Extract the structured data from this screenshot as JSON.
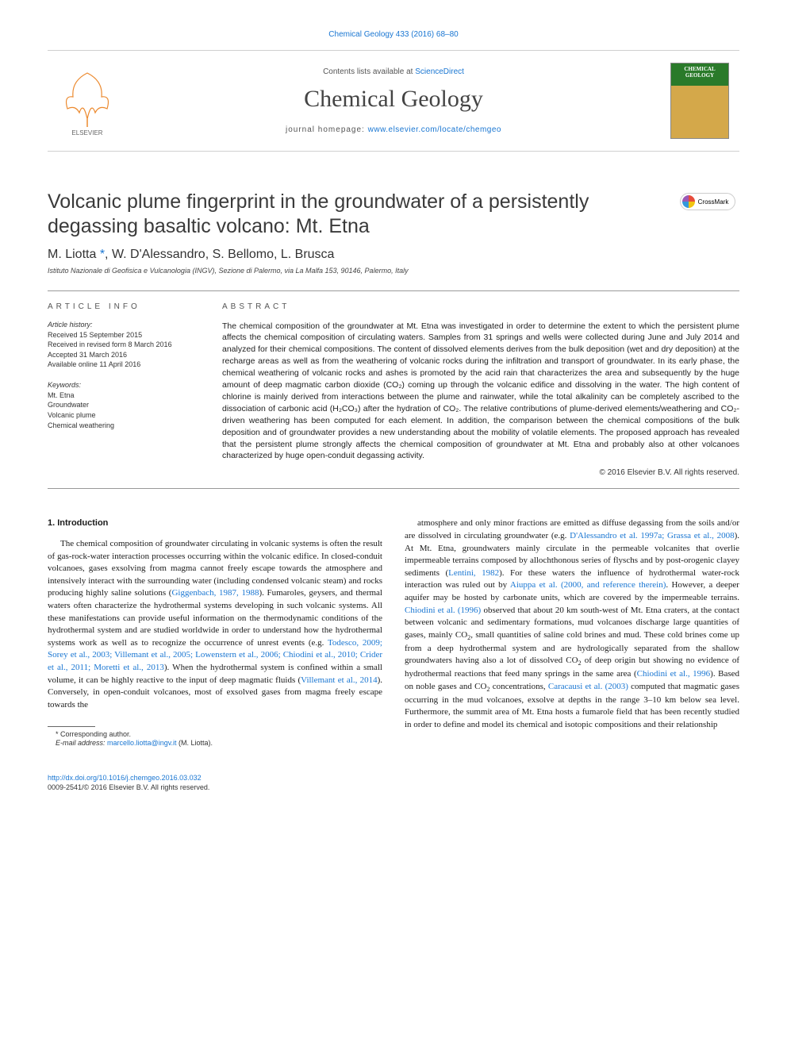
{
  "topCitation": "Chemical Geology 433 (2016) 68–80",
  "header": {
    "contentsLine_pre": "Contents lists available at ",
    "contentsLine_link": "ScienceDirect",
    "journalName": "Chemical Geology",
    "homepage_pre": "journal homepage: ",
    "homepage_link": "www.elsevier.com/locate/chemgeo",
    "coverTitle": "CHEMICAL GEOLOGY"
  },
  "article": {
    "title": "Volcanic plume fingerprint in the groundwater of a persistently degassing basaltic volcano: Mt. Etna",
    "authors_html": "M. Liotta <a href='#'>*</a>, W. D'Alessandro, S. Bellomo, L. Brusca",
    "affiliation": "Istituto Nazionale di Geofisica e Vulcanologia (INGV), Sezione di Palermo, via La Malfa 153, 90146, Palermo, Italy",
    "crossmark": "CrossMark"
  },
  "info": {
    "heading": "article info",
    "historyHead": "Article history:",
    "history": "Received 15 September 2015\nReceived in revised form 8 March 2016\nAccepted 31 March 2016\nAvailable online 11 April 2016",
    "keywordsHead": "Keywords:",
    "keywords": "Mt. Etna\nGroundwater\nVolcanic plume\nChemical weathering"
  },
  "abstract": {
    "heading": "abstract",
    "text": "The chemical composition of the groundwater at Mt. Etna was investigated in order to determine the extent to which the persistent plume affects the chemical composition of circulating waters. Samples from 31 springs and wells were collected during June and July 2014 and analyzed for their chemical compositions. The content of dissolved elements derives from the bulk deposition (wet and dry deposition) at the recharge areas as well as from the weathering of volcanic rocks during the infiltration and transport of groundwater. In its early phase, the chemical weathering of volcanic rocks and ashes is promoted by the acid rain that characterizes the area and subsequently by the huge amount of deep magmatic carbon dioxide (CO₂) coming up through the volcanic edifice and dissolving in the water. The high content of chlorine is mainly derived from interactions between the plume and rainwater, while the total alkalinity can be completely ascribed to the dissociation of carbonic acid (H₂CO₃) after the hydration of CO₂. The relative contributions of plume-derived elements/weathering and CO₂-driven weathering has been computed for each element. In addition, the comparison between the chemical compositions of the bulk deposition and of groundwater provides a new understanding about the mobility of volatile elements. The proposed approach has revealed that the persistent plume strongly affects the chemical composition of groundwater at Mt. Etna and probably also at other volcanoes characterized by huge open-conduit degassing activity.",
    "copyright": "© 2016 Elsevier B.V. All rights reserved."
  },
  "body": {
    "sectionHead": "1. Introduction",
    "col1_html": "The chemical composition of groundwater circulating in volcanic systems is often the result of gas-rock-water interaction processes occurring within the volcanic edifice. In closed-conduit volcanoes, gases exsolving from magma cannot freely escape towards the atmosphere and intensively interact with the surrounding water (including condensed volcanic steam) and rocks producing highly saline solutions (<a href='#'>Giggenbach, 1987, 1988</a>). Fumaroles, geysers, and thermal waters often characterize the hydrothermal systems developing in such volcanic systems. All these manifestations can provide useful information on the thermodynamic conditions of the hydrothermal system and are studied worldwide in order to understand how the hydrothermal systems work as well as to recognize the occurrence of unrest events (e.g. <a href='#'>Todesco, 2009; Sorey et al., 2003; Villemant et al., 2005; Lowenstern et al., 2006; Chiodini et al., 2010; Crider et al., 2011; Moretti et al., 2013</a>). When the hydrothermal system is confined within a small volume, it can be highly reactive to the input of deep magmatic fluids (<a href='#'>Villemant et al., 2014</a>). Conversely, in open-conduit volcanoes, most of exsolved gases from magma freely escape towards the",
    "col2_html": "atmosphere and only minor fractions are emitted as diffuse degassing from the soils and/or are dissolved in circulating groundwater (e.g. <a href='#'>D'Alessandro et al. 1997a; Grassa et al., 2008</a>). At Mt. Etna, groundwaters mainly circulate in the permeable volcanites that overlie impermeable terrains composed by allochthonous series of flyschs and by post-orogenic clayey sediments (<a href='#'>Lentini, 1982</a>). For these waters the influence of hydrothermal water-rock interaction was ruled out by <a href='#'>Aiuppa et al. (2000, and reference therein)</a>. However, a deeper aquifer may be hosted by carbonate units, which are covered by the impermeable terrains. <a href='#'>Chiodini et al. (1996)</a> observed that about 20 km south-west of Mt. Etna craters, at the contact between volcanic and sedimentary formations, mud volcanoes discharge large quantities of gases, mainly CO<sub>2</sub>, small quantities of saline cold brines and mud. These cold brines come up from a deep hydrothermal system and are hydrologically separated from the shallow groundwaters having also a lot of dissolved CO<sub>2</sub> of deep origin but showing no evidence of hydrothermal reactions that feed many springs in the same area (<a href='#'>Chiodini et al., 1996</a>). Based on noble gases and CO<sub>2</sub> concentrations, <a href='#'>Caracausi et al. (2003)</a> computed that magmatic gases occurring in the mud volcanoes, exsolve at depths in the range 3–10 km below sea level. Furthermore, the summit area of Mt. Etna hosts a fumarole field that has been recently studied in order to define and model its chemical and isotopic compositions and their relationship"
  },
  "footnotes": {
    "corresponding": "* Corresponding author.",
    "email_pre": "E-mail address: ",
    "email_link": "marcello.liotta@ingv.it",
    "email_post": " (M. Liotta)."
  },
  "footer": {
    "doi": "http://dx.doi.org/10.1016/j.chemgeo.2016.03.032",
    "issn": "0009-2541/© 2016 Elsevier B.V. All rights reserved."
  },
  "colors": {
    "link": "#1976d2",
    "text": "#000000",
    "rule": "#999999"
  }
}
